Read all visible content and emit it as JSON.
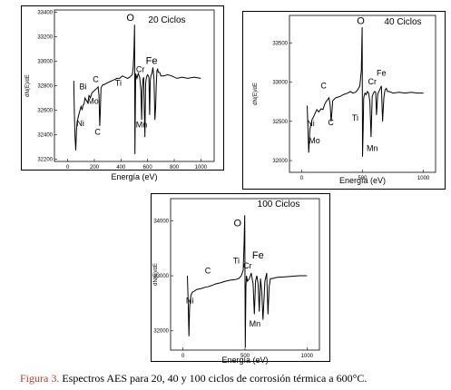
{
  "caption": {
    "label": "Figura 3.",
    "text": " Espectros AES para 20, 40 y 100 ciclos de corrosión térmica a 600°C.",
    "label_color": "#c0392b"
  },
  "chart_data": [
    {
      "type": "line",
      "title": "20 Ciclos",
      "xlabel": "Energía (eV)",
      "ylabel": "dN(E)/dE",
      "xlim": [
        -100,
        1100
      ],
      "ylim": [
        32180,
        33420
      ],
      "xticks": [
        0,
        200,
        400,
        600,
        800,
        1000
      ],
      "yticks": [
        32200,
        32400,
        32600,
        32800,
        33000,
        33200,
        33400
      ],
      "grid": false,
      "series": [
        {
          "x": [
            45,
            50,
            55,
            60,
            65,
            70,
            78,
            85,
            92,
            100,
            108,
            115,
            122,
            130,
            140,
            150,
            160,
            170,
            180,
            190,
            200,
            210,
            220,
            228,
            235,
            240,
            245,
            250,
            258,
            265,
            275,
            290,
            310,
            330,
            350,
            370,
            390,
            410,
            430,
            450,
            465,
            475,
            485,
            492,
            498,
            502,
            505,
            510,
            515,
            520,
            530,
            540,
            550,
            555,
            560,
            565,
            570,
            575,
            580,
            585,
            590,
            595,
            600,
            610,
            615,
            620,
            625,
            632,
            640,
            648,
            655,
            660,
            665,
            670,
            675,
            680,
            690,
            700,
            720,
            750,
            780,
            820,
            860,
            900,
            950,
            1000
          ],
          "y": [
            32840,
            32560,
            32380,
            32270,
            32420,
            32500,
            32540,
            32570,
            32600,
            32630,
            32600,
            32640,
            32650,
            32700,
            32680,
            32660,
            32720,
            32700,
            32740,
            32750,
            32760,
            32770,
            32780,
            32790,
            32720,
            32470,
            32600,
            32780,
            32800,
            32810,
            32810,
            32820,
            32830,
            32840,
            32850,
            32860,
            32860,
            32880,
            32870,
            32860,
            32870,
            32880,
            32890,
            32950,
            33100,
            33300,
            32240,
            32900,
            32880,
            32860,
            32900,
            32870,
            32760,
            32520,
            32780,
            32850,
            32870,
            32600,
            32380,
            32820,
            32860,
            32880,
            32890,
            32870,
            32560,
            32840,
            32880,
            32900,
            32950,
            32860,
            32520,
            32620,
            32800,
            32920,
            32940,
            32910,
            32910,
            32880,
            32880,
            32890,
            32880,
            32860,
            32870,
            32860,
            32870,
            32860
          ]
        }
      ],
      "annotations": [
        "Bi",
        "C",
        "Mo",
        "Ni",
        "C",
        "Ti",
        "O",
        "Cr",
        "Fe",
        "Mn"
      ]
    },
    {
      "type": "line",
      "title": "40 Ciclos",
      "xlabel": "Energía (eV)",
      "ylabel": "dN(E)/dE",
      "xlim": [
        -100,
        1100
      ],
      "ylim": [
        31850,
        33850
      ],
      "xticks": [
        0,
        500,
        1000
      ],
      "yticks": [
        32000,
        32500,
        33000,
        33500
      ],
      "grid": false,
      "series": [
        {
          "x": [
            45,
            52,
            58,
            63,
            68,
            75,
            85,
            95,
            110,
            125,
            140,
            160,
            175,
            190,
            205,
            215,
            225,
            235,
            242,
            248,
            255,
            265,
            280,
            300,
            320,
            340,
            360,
            380,
            400,
            420,
            440,
            460,
            478,
            490,
            497,
            500,
            505,
            510,
            520,
            530,
            540,
            550,
            560,
            570,
            580,
            590,
            600,
            608,
            615,
            625,
            640,
            655,
            665,
            675,
            685,
            695,
            705,
            720,
            750,
            800,
            850,
            900,
            950,
            1000
          ],
          "y": [
            32700,
            32400,
            32100,
            32250,
            32400,
            32450,
            32520,
            32550,
            32600,
            32650,
            32620,
            32660,
            32650,
            32720,
            32760,
            32780,
            32800,
            32700,
            32500,
            32600,
            32760,
            32780,
            32800,
            32810,
            32820,
            32840,
            32850,
            32860,
            32880,
            32860,
            32870,
            32900,
            32950,
            33150,
            33700,
            32050,
            32400,
            32800,
            32860,
            32840,
            32880,
            32860,
            32750,
            32300,
            32820,
            32860,
            32880,
            32870,
            32580,
            32850,
            32900,
            32950,
            32500,
            32800,
            32900,
            32920,
            32880,
            32880,
            32860,
            32870,
            32860,
            32870,
            32860,
            32860
          ]
        }
      ],
      "annotations": [
        "C",
        "Ni",
        "Mo",
        "C",
        "Ti",
        "O",
        "Cr",
        "Fe",
        "Mn"
      ]
    },
    {
      "type": "line",
      "title": "100 Ciclos",
      "xlabel": "Energía (eV)",
      "ylabel": "dN(E)/dE",
      "xlim": [
        -100,
        1100
      ],
      "ylim": [
        31650,
        34400
      ],
      "xticks": [
        0,
        500,
        1000
      ],
      "yticks": [
        32000,
        33000,
        34000
      ],
      "grid": false,
      "series": [
        {
          "x": [
            35,
            42,
            48,
            53,
            58,
            65,
            75,
            90,
            110,
            130,
            150,
            175,
            200,
            230,
            260,
            300,
            340,
            380,
            420,
            450,
            470,
            485,
            493,
            498,
            502,
            507,
            512,
            520,
            535,
            550,
            565,
            575,
            585,
            595,
            605,
            615,
            625,
            635,
            645,
            660,
            675,
            685,
            695,
            705,
            720,
            760,
            820,
            880,
            940,
            1000
          ],
          "y": [
            33000,
            32500,
            31900,
            32400,
            32550,
            32650,
            32700,
            32720,
            32750,
            32760,
            32770,
            32790,
            32800,
            32820,
            32850,
            32870,
            32900,
            32920,
            32930,
            32950,
            33000,
            33100,
            33600,
            34100,
            31700,
            32800,
            33000,
            32900,
            32950,
            33050,
            32850,
            32300,
            32900,
            33000,
            32850,
            32350,
            32950,
            32700,
            32200,
            32900,
            33050,
            32300,
            32800,
            32950,
            32950,
            32970,
            32980,
            32990,
            33000,
            33000
          ]
        }
      ],
      "annotations": [
        "Ni",
        "C",
        "O",
        "Ti",
        "Cr",
        "Fe",
        "Mn"
      ]
    }
  ]
}
